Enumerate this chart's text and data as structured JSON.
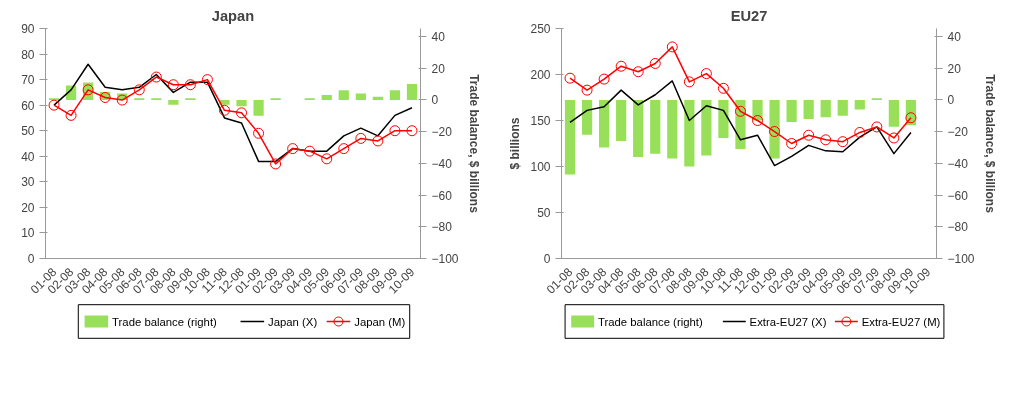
{
  "chart_data": [
    {
      "type": "line",
      "title": "Japan",
      "y2label": "Trade balance, $ billions",
      "categories": [
        "01-08",
        "02-08",
        "03-08",
        "04-08",
        "05-08",
        "06-08",
        "07-08",
        "08-08",
        "09-08",
        "10-08",
        "11-08",
        "12-08",
        "01-09",
        "02-09",
        "03-09",
        "04-09",
        "05-09",
        "06-09",
        "07-09",
        "08-09",
        "09-09",
        "10-09"
      ],
      "series": [
        {
          "name": "Trade balance (right)",
          "type": "bar",
          "axis": "y2",
          "color": "#99e05a",
          "values": [
            1,
            9,
            11,
            5,
            4,
            1,
            1,
            -3,
            1,
            0,
            -3,
            -4,
            -10,
            1,
            0,
            1,
            3,
            6,
            4,
            2,
            6,
            10
          ]
        },
        {
          "name": "Japan (X)",
          "color": "#000000",
          "marker": "none",
          "values": [
            60,
            66,
            76,
            67,
            66,
            67,
            72,
            65,
            69,
            69,
            55,
            53,
            38,
            38,
            43,
            42,
            42,
            48,
            51,
            48,
            56,
            59
          ]
        },
        {
          "name": "Japan (M)",
          "color": "#ff0000",
          "marker": "circle",
          "values": [
            60,
            56,
            66,
            63,
            62,
            66,
            71,
            68,
            68,
            70,
            58,
            57,
            49,
            37,
            43,
            42,
            39,
            43,
            47,
            46,
            50,
            50
          ]
        }
      ],
      "ylim": [
        0,
        90
      ],
      "yticks": [
        0,
        10,
        20,
        30,
        40,
        50,
        60,
        70,
        80,
        90
      ],
      "y2lim": [
        -100,
        45
      ],
      "y2ticks": [
        -100,
        -80,
        -60,
        -40,
        -20,
        0,
        20,
        40
      ],
      "grid": false,
      "legend": "bottom"
    },
    {
      "type": "line",
      "title": "EU27",
      "ylabel": "$ billions",
      "y2label": "Trade balance, $ billions",
      "categories": [
        "01-08",
        "02-08",
        "03-08",
        "04-08",
        "05-08",
        "06-08",
        "07-08",
        "08-08",
        "09-08",
        "10-08",
        "11-08",
        "12-08",
        "01-09",
        "02-09",
        "03-09",
        "04-09",
        "05-09",
        "06-09",
        "07-09",
        "08-09",
        "09-09",
        "10-09"
      ],
      "series": [
        {
          "name": "Trade balance (right)",
          "type": "bar",
          "axis": "y2",
          "color": "#99e05a",
          "values": [
            -47,
            -22,
            -30,
            -26,
            -36,
            -34,
            -37,
            -42,
            -35,
            -24,
            -31,
            -13,
            -37,
            -14,
            -12,
            -11,
            -10,
            -6,
            1,
            -17,
            -16,
            null
          ]
        },
        {
          "name": "Extra-EU27 (X)",
          "color": "#000000",
          "marker": "none",
          "values": [
            148,
            161,
            165,
            183,
            167,
            178,
            193,
            150,
            166,
            161,
            129,
            134,
            101,
            111,
            123,
            117,
            116,
            132,
            143,
            114,
            137,
            null
          ]
        },
        {
          "name": "Extra-EU27 (M)",
          "color": "#ff0000",
          "marker": "circle",
          "values": [
            196,
            183,
            195,
            209,
            203,
            212,
            230,
            192,
            201,
            185,
            160,
            150,
            138,
            125,
            134,
            129,
            127,
            137,
            143,
            131,
            153,
            null
          ]
        }
      ],
      "ylim": [
        0,
        250
      ],
      "yticks": [
        0,
        50,
        100,
        150,
        200,
        250
      ],
      "y2lim": [
        -100,
        45
      ],
      "y2ticks": [
        -100,
        -80,
        -60,
        -40,
        -20,
        0,
        20,
        40
      ],
      "grid": false,
      "legend": "bottom"
    }
  ]
}
